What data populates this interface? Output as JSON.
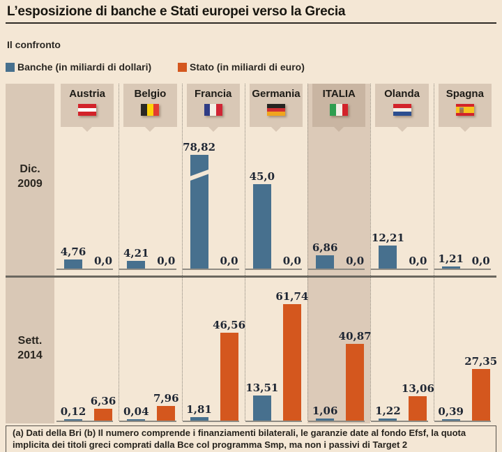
{
  "title": "L’esposizione di banche e Stati europei verso la Grecia",
  "subtitle": "Il confronto",
  "legend": [
    {
      "label": "Banche (in miliardi di dollari)",
      "color_key": "banche"
    },
    {
      "label": "Stato (in miliardi di euro)",
      "color_key": "stato"
    }
  ],
  "colors": {
    "background": "#f4e7d5",
    "banche": "#47708e",
    "stato": "#d4571e",
    "panel": "#d9c8b6",
    "highlight_panel": "#c9b5a2",
    "highlight_column": "#dccab8",
    "value_text": "#1e2633",
    "baseline": "#8f8b83",
    "divider": "#6b675f",
    "dotted": "#8b867c",
    "country_text": "#1d1b16",
    "period_text": "#2a2620"
  },
  "chart_data": {
    "type": "bar",
    "title": "L’esposizione di banche e Stati europei verso la Grecia",
    "legend_position": "top",
    "grid": false,
    "ylim": [
      0,
      80
    ],
    "categories": [
      {
        "name": "Austria",
        "highlight": false,
        "flag": {
          "orientation": "h",
          "stripes": [
            "#d2232a",
            "#ffffff",
            "#d2232a"
          ]
        }
      },
      {
        "name": "Belgio",
        "highlight": false,
        "flag": {
          "orientation": "v",
          "stripes": [
            "#2a2824",
            "#fdd20a",
            "#e23b30"
          ]
        }
      },
      {
        "name": "Francia",
        "highlight": false,
        "flag": {
          "orientation": "v",
          "stripes": [
            "#2f3c85",
            "#f4efe6",
            "#d02535"
          ]
        }
      },
      {
        "name": "Germania",
        "highlight": false,
        "flag": {
          "orientation": "h",
          "stripes": [
            "#262421",
            "#d03033",
            "#f0a51e"
          ]
        }
      },
      {
        "name": "ITALIA",
        "highlight": true,
        "flag": {
          "orientation": "v",
          "stripes": [
            "#2f9e4f",
            "#f4efe6",
            "#d2232a"
          ]
        }
      },
      {
        "name": "Olanda",
        "highlight": false,
        "flag": {
          "orientation": "h",
          "stripes": [
            "#d2232a",
            "#f4efe6",
            "#2c4e8f"
          ]
        }
      },
      {
        "name": "Spagna",
        "highlight": false,
        "flag": {
          "orientation": "h",
          "stripes": [
            "#d2232a",
            "#f7c31e",
            "#d2232a"
          ],
          "ratios": [
            1,
            2,
            1
          ],
          "emblem": true
        }
      }
    ],
    "rows": [
      {
        "period_line1": "Dic.",
        "period_line2": "2009",
        "banche": {
          "values": [
            4.76,
            4.21,
            78.82,
            45.0,
            6.86,
            12.21,
            1.21
          ],
          "labels": [
            "4,76",
            "4,21",
            "78,82",
            "45,0",
            "6,86",
            "12,21",
            "1,21"
          ]
        },
        "stato": {
          "values": [
            0,
            0,
            0,
            0,
            0,
            0,
            0
          ],
          "labels": [
            "0,0",
            "0,0",
            "0,0",
            "0,0",
            "0,0",
            "0,0",
            "0,0"
          ]
        }
      },
      {
        "period_line1": "Sett.",
        "period_line2": "2014",
        "banche": {
          "values": [
            0.12,
            0.04,
            1.81,
            13.51,
            1.06,
            1.22,
            0.39
          ],
          "labels": [
            "0,12",
            "0,04",
            "1,81",
            "13,51",
            "1,06",
            "1,22",
            "0,39"
          ]
        },
        "stato": {
          "values": [
            6.36,
            7.96,
            46.56,
            61.74,
            40.87,
            13.06,
            27.35
          ],
          "labels": [
            "6,36",
            "7,96",
            "46,56",
            "61,74",
            "40,87",
            "13,06",
            "27,35"
          ]
        }
      }
    ],
    "truncated_bars": [
      {
        "row": 0,
        "category": 2,
        "note": "bar shown with axis-break slash"
      }
    ]
  },
  "footnote": "(a) Dati della Bri (b) Il numero comprende i finanziamenti bilaterali, le garanzie date al fondo Efsf, la quota implicita dei titoli greci comprati dalla Bce col programma Smp, ma non i passivi di Target 2"
}
